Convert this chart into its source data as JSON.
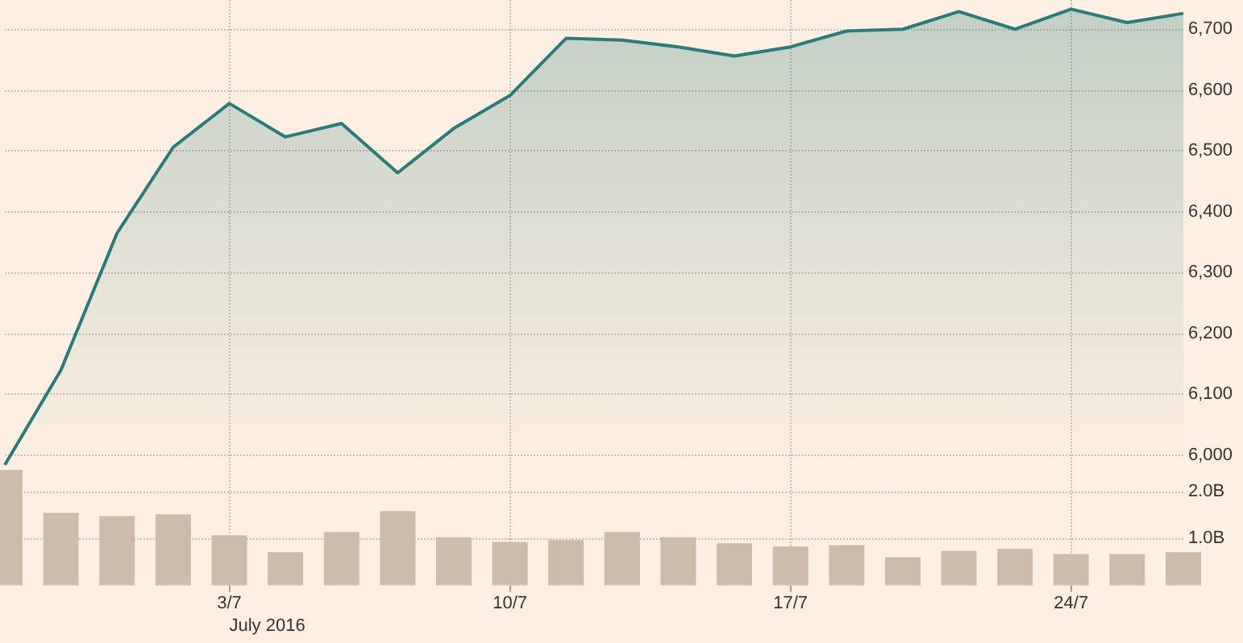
{
  "chart_data": [
    {
      "type": "area",
      "categories": [
        null,
        null,
        null,
        null,
        null,
        null,
        null,
        null,
        null,
        null,
        null,
        null,
        null,
        null,
        null,
        null,
        null,
        null,
        null,
        null,
        null,
        null
      ],
      "series": [
        {
          "color": "#2b7b7b",
          "values": [
            5984,
            6140,
            6365,
            6506,
            6578,
            6523,
            6545,
            6464,
            6537,
            6591,
            6685,
            6682,
            6671,
            6656,
            6671,
            6697,
            6700,
            6729,
            6700,
            6733,
            6711,
            6726
          ]
        }
      ],
      "ylim": [
        5980,
        6748
      ],
      "yticks": [
        {
          "value": 6000,
          "label": "6,000"
        },
        {
          "value": 6100,
          "label": "6,100"
        },
        {
          "value": 6200,
          "label": "6,200"
        },
        {
          "value": 6300,
          "label": "6,300"
        },
        {
          "value": 6400,
          "label": "6,400"
        },
        {
          "value": 6500,
          "label": "6,500"
        },
        {
          "value": 6600,
          "label": "6,600"
        },
        {
          "value": 6700,
          "label": "6,700"
        }
      ],
      "grid": true,
      "tick_labels": "y"
    },
    {
      "type": "bar",
      "categories": [
        null,
        null,
        null,
        null,
        "3/7",
        null,
        null,
        null,
        null,
        "10/7",
        null,
        null,
        null,
        null,
        "17/7",
        null,
        null,
        null,
        null,
        "24/7",
        null,
        null
      ],
      "series": [
        {
          "color": "#cdbca9",
          "values": [
            2.47,
            1.55,
            1.48,
            1.52,
            1.07,
            0.71,
            1.14,
            1.59,
            1.03,
            0.93,
            0.97,
            1.14,
            1.03,
            0.9,
            0.83,
            0.86,
            0.6,
            0.74,
            0.78,
            0.67,
            0.67,
            0.71
          ]
        }
      ],
      "ylim": [
        0,
        2.8
      ],
      "yticks": [
        {
          "value": 1,
          "label": "1.0B"
        },
        {
          "value": 2,
          "label": "2.0B"
        }
      ],
      "annotations": [
        "July 2016"
      ],
      "grid": true
    }
  ]
}
